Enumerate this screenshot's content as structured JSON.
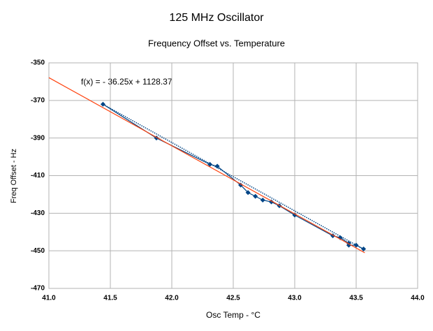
{
  "chart_data": {
    "type": "scatter",
    "title": "125 MHz Oscillator",
    "subtitle": "Frequency Offset vs. Temperature",
    "x_label": "Osc Temp - °C",
    "y_label": "Freq Offset - Hz",
    "annotation": "f(x) =  - 36.25x + 1128.37",
    "xlim": [
      41,
      44
    ],
    "xticks": [
      {
        "value": 41,
        "label": "41.0"
      },
      41.5,
      {
        "value": 42,
        "label": "42.0"
      },
      42.5,
      {
        "value": 43,
        "label": "43.0"
      },
      43.5,
      {
        "value": 44,
        "label": "44.0"
      }
    ],
    "ylim": [
      -470,
      -350
    ],
    "yticks": [
      -470,
      -450,
      -430,
      -410,
      -390,
      -370,
      -350
    ],
    "grid": true,
    "series": [
      {
        "color": "#004586",
        "style": "points-line",
        "x": [
          41.44,
          41.875,
          42.31,
          42.37,
          42.56,
          42.62,
          42.68,
          42.74,
          42.81,
          42.875,
          43.0,
          43.31,
          43.37,
          43.44,
          43.44,
          43.5,
          43.56
        ],
        "values": [
          -372,
          -390,
          -404,
          -405,
          -415,
          -419,
          -421,
          -423,
          -424,
          -426,
          -431,
          -442,
          -443,
          -446,
          -447,
          -447,
          -449
        ]
      },
      {
        "color": "#004586",
        "style": "dotted",
        "x": [
          41.44,
          43.57
        ],
        "values": [
          -372,
          -449.5
        ]
      },
      {
        "color": "#ff420e",
        "style": "line",
        "x": [
          41,
          43.57
        ],
        "values": [
          -357.88,
          -451.04
        ]
      }
    ]
  }
}
